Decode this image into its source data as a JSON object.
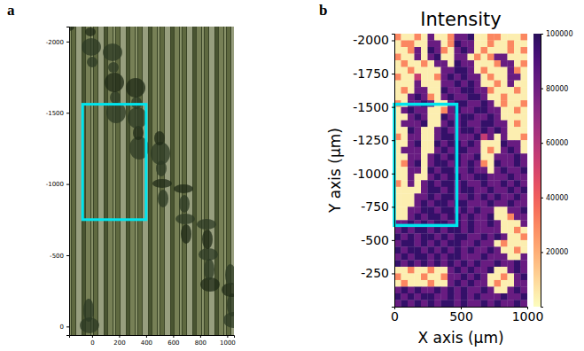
{
  "chart_data": [
    {
      "type": "image",
      "panel": "a",
      "xlim": [
        -170,
        1050
      ],
      "ylim": [
        -2105,
        60
      ],
      "xticks": [
        0,
        200,
        400,
        600,
        800,
        1000
      ],
      "yticks": [
        -2000,
        -1500,
        -1000,
        -500,
        0
      ],
      "box": {
        "x0": -70,
        "x1": 400,
        "y0": -1560,
        "y1": -750
      }
    },
    {
      "type": "heatmap",
      "panel": "b",
      "title": "Intensity",
      "x_label": "X axis (μm)",
      "y_label": "Y axis (μm)",
      "xlim": [
        0,
        1000
      ],
      "ylim": [
        -2050,
        0
      ],
      "xticks": [
        0,
        500,
        1000
      ],
      "yticks": [
        -2000,
        -1750,
        -1500,
        -1250,
        -1000,
        -750,
        -500,
        -250
      ],
      "x": [
        0,
        50,
        100,
        150,
        200,
        250,
        300,
        350,
        400,
        450,
        500,
        550,
        600,
        650,
        700,
        750,
        800,
        850,
        900,
        950
      ],
      "y": [
        -2050,
        -2000,
        -1950,
        -1900,
        -1850,
        -1800,
        -1750,
        -1700,
        -1650,
        -1600,
        -1550,
        -1500,
        -1450,
        -1400,
        -1350,
        -1300,
        -1250,
        -1200,
        -1150,
        -1100,
        -1050,
        -1000,
        -950,
        -900,
        -850,
        -800,
        -750,
        -700,
        -650,
        -600,
        -550,
        -500,
        -450,
        -400,
        -350,
        -300,
        -250,
        -200,
        -150,
        -100,
        -50
      ],
      "values": [
        [
          30000,
          4000,
          4000,
          30000,
          4000,
          82000,
          4000,
          4000,
          30000,
          82000,
          82000,
          97000,
          4000,
          4000,
          30000,
          30000,
          4000,
          4000,
          4000,
          30000
        ],
        [
          4000,
          30000,
          30000,
          4000,
          4000,
          82000,
          82000,
          4000,
          30000,
          97000,
          82000,
          82000,
          4000,
          4000,
          30000,
          4000,
          4000,
          30000,
          4000,
          4000
        ],
        [
          4000,
          4000,
          30000,
          82000,
          4000,
          97000,
          82000,
          30000,
          4000,
          82000,
          97000,
          82000,
          4000,
          30000,
          4000,
          4000,
          4000,
          30000,
          4000,
          30000
        ],
        [
          30000,
          4000,
          4000,
          82000,
          4000,
          82000,
          97000,
          4000,
          4000,
          82000,
          82000,
          4000,
          30000,
          4000,
          30000,
          82000,
          82000,
          4000,
          4000,
          4000
        ],
        [
          4000,
          30000,
          4000,
          4000,
          30000,
          4000,
          82000,
          82000,
          4000,
          97000,
          82000,
          82000,
          4000,
          4000,
          4000,
          30000,
          82000,
          82000,
          4000,
          30000
        ],
        [
          4000,
          4000,
          30000,
          4000,
          4000,
          4000,
          4000,
          82000,
          82000,
          97000,
          97000,
          82000,
          4000,
          30000,
          4000,
          4000,
          4000,
          82000,
          30000,
          4000
        ],
        [
          30000,
          4000,
          4000,
          55000,
          4000,
          4000,
          30000,
          82000,
          97000,
          82000,
          97000,
          82000,
          82000,
          4000,
          30000,
          4000,
          4000,
          82000,
          82000,
          4000
        ],
        [
          4000,
          4000,
          4000,
          82000,
          4000,
          4000,
          4000,
          82000,
          82000,
          97000,
          82000,
          97000,
          82000,
          4000,
          4000,
          30000,
          4000,
          82000,
          4000,
          4000
        ],
        [
          4000,
          30000,
          4000,
          82000,
          82000,
          4000,
          4000,
          97000,
          82000,
          82000,
          97000,
          97000,
          82000,
          82000,
          30000,
          4000,
          4000,
          4000,
          30000,
          4000
        ],
        [
          4000,
          4000,
          82000,
          97000,
          82000,
          30000,
          4000,
          82000,
          97000,
          82000,
          82000,
          97000,
          97000,
          82000,
          4000,
          4000,
          30000,
          4000,
          4000,
          4000
        ],
        [
          30000,
          4000,
          82000,
          82000,
          97000,
          82000,
          4000,
          4000,
          82000,
          97000,
          97000,
          82000,
          82000,
          97000,
          82000,
          4000,
          30000,
          4000,
          4000,
          30000
        ],
        [
          4000,
          82000,
          97000,
          82000,
          82000,
          4000,
          4000,
          30000,
          82000,
          97000,
          82000,
          82000,
          97000,
          97000,
          82000,
          82000,
          4000,
          4000,
          30000,
          4000
        ],
        [
          4000,
          4000,
          82000,
          97000,
          82000,
          4000,
          4000,
          97000,
          82000,
          82000,
          97000,
          97000,
          82000,
          82000,
          97000,
          82000,
          4000,
          4000,
          4000,
          4000
        ],
        [
          4000,
          82000,
          82000,
          82000,
          97000,
          4000,
          4000,
          82000,
          97000,
          82000,
          97000,
          82000,
          82000,
          97000,
          97000,
          82000,
          82000,
          4000,
          30000,
          4000
        ],
        [
          4000,
          4000,
          97000,
          82000,
          4000,
          4000,
          82000,
          97000,
          82000,
          82000,
          97000,
          97000,
          82000,
          97000,
          82000,
          97000,
          82000,
          4000,
          4000,
          4000
        ],
        [
          30000,
          4000,
          82000,
          82000,
          4000,
          4000,
          82000,
          97000,
          97000,
          82000,
          82000,
          82000,
          97000,
          55000,
          82000,
          4000,
          82000,
          4000,
          4000,
          30000
        ],
        [
          4000,
          4000,
          82000,
          97000,
          4000,
          4000,
          97000,
          82000,
          97000,
          97000,
          82000,
          97000,
          82000,
          4000,
          4000,
          4000,
          97000,
          82000,
          82000,
          4000
        ],
        [
          4000,
          82000,
          82000,
          82000,
          4000,
          4000,
          82000,
          97000,
          82000,
          97000,
          97000,
          82000,
          82000,
          4000,
          30000,
          4000,
          82000,
          97000,
          82000,
          4000
        ],
        [
          4000,
          4000,
          82000,
          82000,
          4000,
          82000,
          97000,
          82000,
          97000,
          97000,
          82000,
          82000,
          97000,
          4000,
          4000,
          82000,
          82000,
          82000,
          97000,
          82000
        ],
        [
          4000,
          30000,
          82000,
          97000,
          4000,
          82000,
          97000,
          97000,
          82000,
          97000,
          82000,
          97000,
          82000,
          30000,
          4000,
          97000,
          82000,
          82000,
          97000,
          82000
        ],
        [
          4000,
          4000,
          82000,
          82000,
          4000,
          97000,
          82000,
          97000,
          97000,
          82000,
          82000,
          97000,
          82000,
          82000,
          4000,
          82000,
          97000,
          82000,
          82000,
          97000
        ],
        [
          4000,
          4000,
          82000,
          4000,
          4000,
          82000,
          97000,
          82000,
          97000,
          97000,
          82000,
          82000,
          97000,
          97000,
          82000,
          82000,
          82000,
          97000,
          82000,
          82000
        ],
        [
          30000,
          4000,
          82000,
          4000,
          82000,
          97000,
          82000,
          97000,
          97000,
          82000,
          97000,
          82000,
          82000,
          97000,
          82000,
          82000,
          97000,
          82000,
          97000,
          82000
        ],
        [
          4000,
          4000,
          4000,
          4000,
          82000,
          97000,
          97000,
          82000,
          97000,
          82000,
          97000,
          97000,
          82000,
          82000,
          97000,
          82000,
          82000,
          97000,
          82000,
          97000
        ],
        [
          4000,
          4000,
          4000,
          82000,
          82000,
          97000,
          82000,
          97000,
          97000,
          82000,
          82000,
          97000,
          82000,
          97000,
          82000,
          97000,
          82000,
          82000,
          97000,
          82000
        ],
        [
          4000,
          4000,
          4000,
          82000,
          97000,
          82000,
          97000,
          97000,
          82000,
          97000,
          97000,
          82000,
          82000,
          82000,
          97000,
          82000,
          82000,
          97000,
          82000,
          82000
        ],
        [
          4000,
          4000,
          82000,
          82000,
          97000,
          97000,
          82000,
          97000,
          97000,
          82000,
          97000,
          82000,
          97000,
          82000,
          82000,
          4000,
          4000,
          82000,
          82000,
          97000
        ],
        [
          4000,
          4000,
          82000,
          97000,
          82000,
          97000,
          97000,
          82000,
          97000,
          97000,
          82000,
          97000,
          82000,
          82000,
          97000,
          4000,
          4000,
          30000,
          82000,
          82000
        ],
        [
          82000,
          82000,
          97000,
          82000,
          97000,
          82000,
          97000,
          97000,
          82000,
          97000,
          82000,
          97000,
          82000,
          82000,
          97000,
          82000,
          4000,
          4000,
          4000,
          82000
        ],
        [
          82000,
          97000,
          82000,
          97000,
          97000,
          82000,
          97000,
          82000,
          97000,
          97000,
          82000,
          97000,
          82000,
          82000,
          82000,
          82000,
          4000,
          4000,
          30000,
          4000
        ],
        [
          97000,
          82000,
          97000,
          82000,
          97000,
          97000,
          82000,
          97000,
          82000,
          97000,
          97000,
          82000,
          82000,
          97000,
          82000,
          97000,
          82000,
          4000,
          4000,
          30000
        ],
        [
          82000,
          97000,
          97000,
          82000,
          97000,
          82000,
          97000,
          82000,
          97000,
          97000,
          82000,
          82000,
          97000,
          82000,
          82000,
          4000,
          30000,
          4000,
          4000,
          4000
        ],
        [
          97000,
          82000,
          97000,
          97000,
          82000,
          97000,
          82000,
          97000,
          82000,
          97000,
          82000,
          97000,
          82000,
          82000,
          97000,
          82000,
          4000,
          4000,
          30000,
          4000
        ],
        [
          82000,
          97000,
          82000,
          97000,
          97000,
          82000,
          97000,
          82000,
          97000,
          97000,
          82000,
          82000,
          82000,
          97000,
          82000,
          82000,
          82000,
          4000,
          4000,
          82000
        ],
        [
          97000,
          82000,
          97000,
          82000,
          97000,
          82000,
          97000,
          82000,
          97000,
          82000,
          97000,
          82000,
          97000,
          82000,
          82000,
          97000,
          82000,
          82000,
          97000,
          82000
        ],
        [
          4000,
          4000,
          30000,
          4000,
          4000,
          30000,
          4000,
          4000,
          82000,
          97000,
          82000,
          97000,
          82000,
          82000,
          97000,
          4000,
          4000,
          82000,
          97000,
          82000
        ],
        [
          30000,
          4000,
          4000,
          4000,
          30000,
          4000,
          4000,
          30000,
          82000,
          82000,
          97000,
          82000,
          97000,
          82000,
          4000,
          4000,
          30000,
          4000,
          82000,
          97000
        ],
        [
          4000,
          30000,
          4000,
          4000,
          4000,
          30000,
          4000,
          4000,
          82000,
          97000,
          82000,
          97000,
          82000,
          82000,
          4000,
          30000,
          4000,
          4000,
          82000,
          82000
        ],
        [
          82000,
          97000,
          82000,
          97000,
          82000,
          82000,
          97000,
          82000,
          97000,
          82000,
          97000,
          82000,
          82000,
          97000,
          82000,
          4000,
          4000,
          82000,
          97000,
          82000
        ],
        [
          97000,
          82000,
          97000,
          82000,
          97000,
          97000,
          82000,
          82000,
          97000,
          82000,
          97000,
          82000,
          97000,
          82000,
          82000,
          82000,
          97000,
          82000,
          82000,
          97000
        ],
        [
          82000,
          97000,
          82000,
          97000,
          82000,
          97000,
          82000,
          97000,
          97000,
          82000,
          97000,
          82000,
          82000,
          97000,
          82000,
          97000,
          82000,
          82000,
          97000,
          82000
        ]
      ],
      "colorbar": {
        "range": [
          0,
          100000
        ],
        "ticks": [
          20000,
          40000,
          60000,
          80000,
          100000
        ]
      },
      "box": {
        "x0": 0,
        "x1": 470,
        "y0": -1520,
        "y1": -610
      }
    }
  ]
}
